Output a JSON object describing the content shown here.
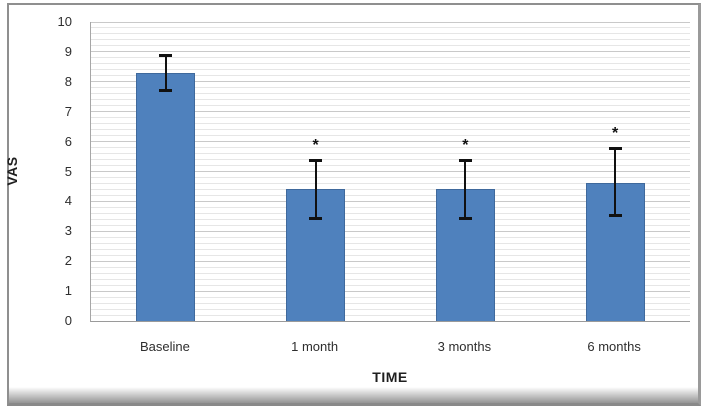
{
  "frame": {
    "border_color": "#8f8f8f",
    "background": "#ffffff"
  },
  "chart_data": {
    "type": "bar",
    "title": "",
    "categories": [
      "Baseline",
      "1 month",
      "3 months",
      "6 months"
    ],
    "values": [
      8.3,
      4.4,
      4.4,
      4.6
    ],
    "error_low": [
      7.7,
      3.4,
      3.4,
      3.5
    ],
    "error_high": [
      8.9,
      5.4,
      5.4,
      5.8
    ],
    "significant": [
      false,
      true,
      true,
      true
    ],
    "significance_marker": "*",
    "xlabel": "TIME",
    "ylabel": "VAS",
    "ylim": [
      0,
      10
    ],
    "ytick_step": 1,
    "yticks": [
      0,
      1,
      2,
      3,
      4,
      5,
      6,
      7,
      8,
      9,
      10
    ],
    "minor_grid_step": 0.2,
    "grid": "horizontal-major-and-minor",
    "legend": "none",
    "bar_color": "#4f81bd",
    "bar_border_color": "#3f699c",
    "major_grid_color": "#c9c9c9",
    "minor_grid_color": "#e6e6e6",
    "axis_color": "#9a9a9a",
    "error_bar_color": "#111111",
    "text_color": "#2e2e2e"
  }
}
